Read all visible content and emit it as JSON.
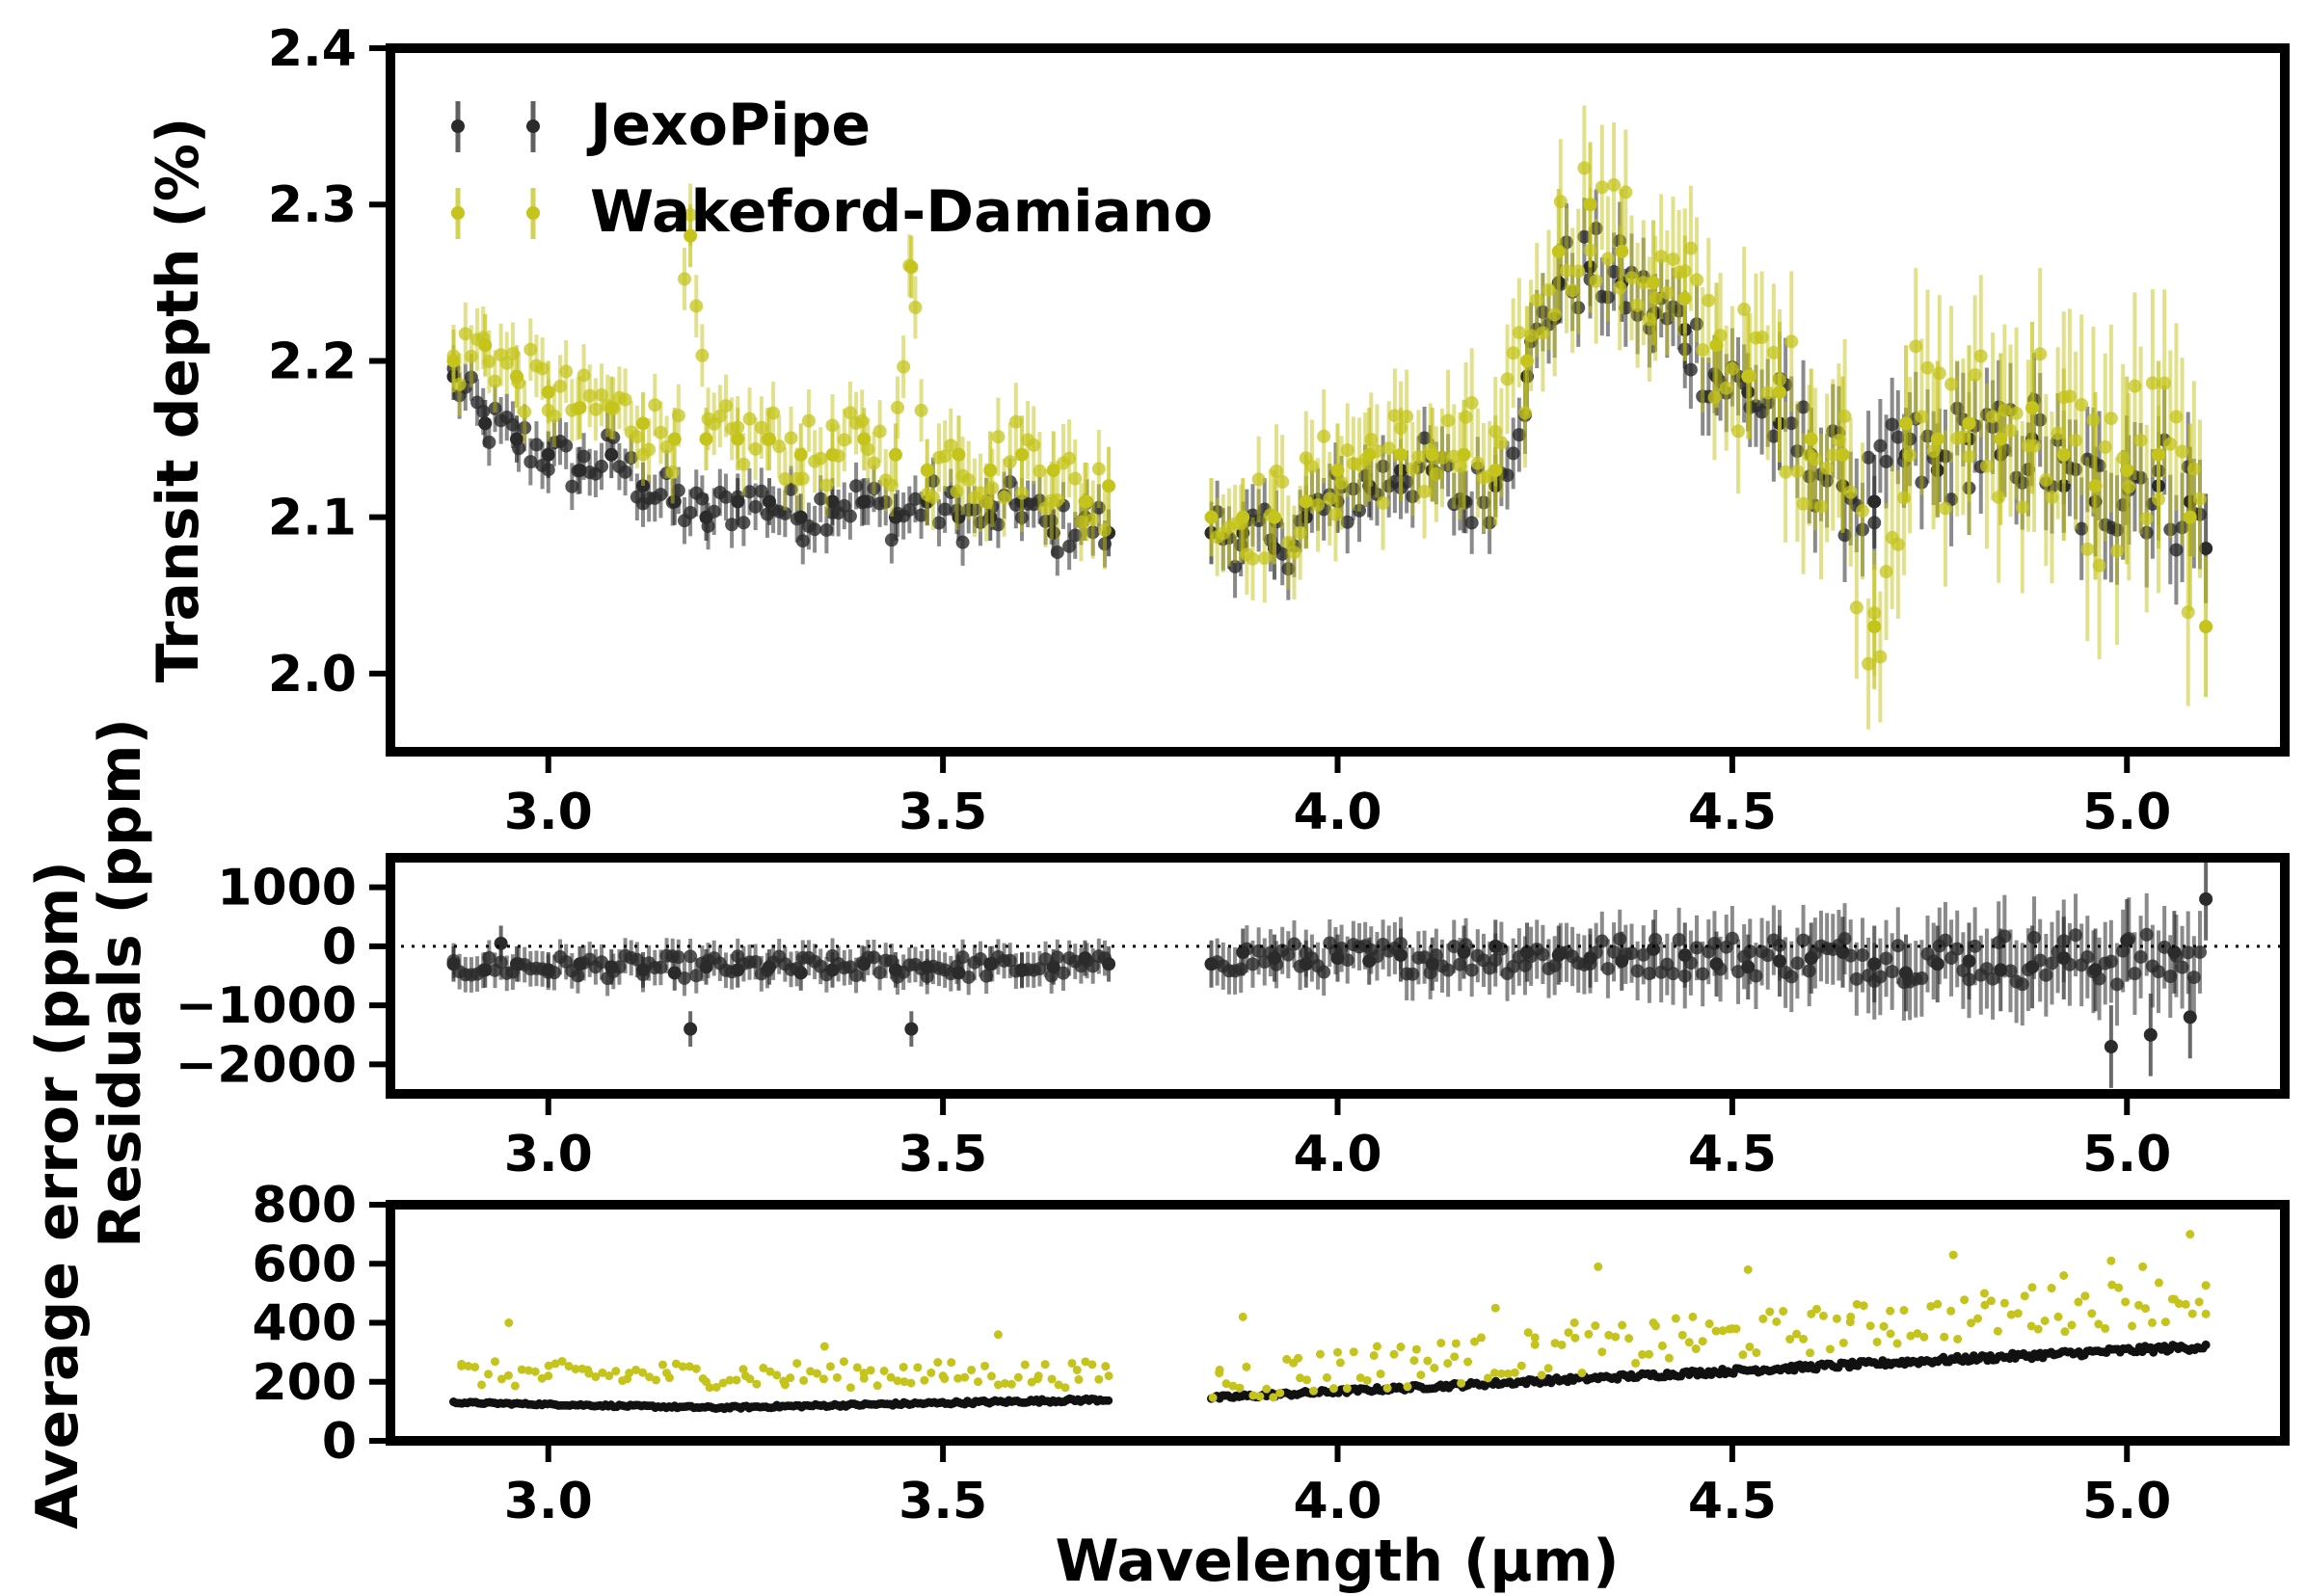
{
  "colors": {
    "jexopipe": "#2b2b2b",
    "wakeford": "#c4c41c",
    "axes": "#000000",
    "background": "#ffffff"
  },
  "xlabel": "Wavelength (µm)",
  "chart_data": [
    {
      "type": "scatter",
      "panel": "top",
      "title": "",
      "xlabel": "",
      "ylabel": "Transit depth (%)",
      "xlim": [
        2.8,
        5.2
      ],
      "ylim": [
        1.95,
        2.4
      ],
      "x_ticks": [
        "3.0",
        "3.5",
        "4.0",
        "4.5",
        "5.0"
      ],
      "y_ticks": [
        "2.0",
        "2.1",
        "2.2",
        "2.3",
        "2.4"
      ],
      "legend": {
        "placement": "top-left",
        "entries": [
          "JexoPipe",
          "Wakeford-Damiano"
        ]
      },
      "series": [
        {
          "name": "JexoPipe",
          "color": "#2b2b2b",
          "x": [
            2.88,
            2.92,
            2.96,
            3.0,
            3.04,
            3.08,
            3.12,
            3.16,
            3.2,
            3.24,
            3.28,
            3.32,
            3.36,
            3.4,
            3.44,
            3.48,
            3.52,
            3.56,
            3.6,
            3.64,
            3.68,
            3.71,
            3.84,
            3.88,
            3.92,
            3.96,
            4.0,
            4.04,
            4.08,
            4.12,
            4.16,
            4.2,
            4.24,
            4.28,
            4.32,
            4.36,
            4.4,
            4.44,
            4.48,
            4.52,
            4.56,
            4.6,
            4.64,
            4.68,
            4.72,
            4.76,
            4.8,
            4.84,
            4.88,
            4.92,
            4.96,
            5.0,
            5.04,
            5.08,
            5.1
          ],
          "y": [
            2.19,
            2.16,
            2.15,
            2.14,
            2.13,
            2.14,
            2.12,
            2.11,
            2.1,
            2.11,
            2.11,
            2.1,
            2.11,
            2.11,
            2.1,
            2.11,
            2.1,
            2.1,
            2.11,
            2.09,
            2.1,
            2.09,
            2.09,
            2.09,
            2.08,
            2.1,
            2.11,
            2.12,
            2.13,
            2.13,
            2.11,
            2.12,
            2.19,
            2.25,
            2.26,
            2.25,
            2.23,
            2.22,
            2.19,
            2.18,
            2.16,
            2.14,
            2.12,
            2.11,
            2.14,
            2.13,
            2.15,
            2.14,
            2.15,
            2.12,
            2.11,
            2.13,
            2.12,
            2.11,
            2.08
          ],
          "err": [
            0.015,
            0.015,
            0.015,
            0.015,
            0.015,
            0.015,
            0.015,
            0.015,
            0.015,
            0.015,
            0.015,
            0.015,
            0.015,
            0.015,
            0.015,
            0.015,
            0.015,
            0.015,
            0.015,
            0.015,
            0.015,
            0.015,
            0.02,
            0.02,
            0.02,
            0.02,
            0.02,
            0.02,
            0.02,
            0.02,
            0.02,
            0.02,
            0.025,
            0.025,
            0.025,
            0.025,
            0.025,
            0.025,
            0.025,
            0.025,
            0.03,
            0.03,
            0.03,
            0.03,
            0.03,
            0.03,
            0.03,
            0.03,
            0.03,
            0.03,
            0.035,
            0.035,
            0.035,
            0.035,
            0.035
          ]
        },
        {
          "name": "Wakeford-Damiano",
          "color": "#c4c41c",
          "x": [
            2.88,
            2.92,
            2.96,
            3.0,
            3.04,
            3.08,
            3.12,
            3.16,
            3.18,
            3.2,
            3.24,
            3.28,
            3.32,
            3.36,
            3.4,
            3.44,
            3.46,
            3.48,
            3.52,
            3.56,
            3.6,
            3.64,
            3.68,
            3.71,
            3.84,
            3.88,
            3.92,
            3.96,
            4.0,
            4.04,
            4.08,
            4.12,
            4.16,
            4.2,
            4.24,
            4.28,
            4.32,
            4.36,
            4.4,
            4.44,
            4.48,
            4.52,
            4.56,
            4.6,
            4.64,
            4.68,
            4.72,
            4.76,
            4.8,
            4.84,
            4.88,
            4.92,
            4.96,
            5.0,
            5.04,
            5.08,
            5.1
          ],
          "y": [
            2.2,
            2.21,
            2.19,
            2.18,
            2.17,
            2.17,
            2.16,
            2.15,
            2.28,
            2.15,
            2.15,
            2.15,
            2.14,
            2.14,
            2.15,
            2.14,
            2.26,
            2.13,
            2.14,
            2.13,
            2.14,
            2.13,
            2.11,
            2.12,
            2.1,
            2.1,
            2.1,
            2.11,
            2.13,
            2.14,
            2.14,
            2.14,
            2.14,
            2.13,
            2.2,
            2.27,
            2.3,
            2.27,
            2.25,
            2.24,
            2.21,
            2.19,
            2.18,
            2.15,
            2.14,
            2.03,
            2.16,
            2.15,
            2.16,
            2.15,
            2.17,
            2.14,
            2.12,
            2.13,
            2.14,
            2.1,
            2.03
          ],
          "err": [
            0.02,
            0.02,
            0.02,
            0.02,
            0.02,
            0.02,
            0.02,
            0.02,
            0.02,
            0.02,
            0.02,
            0.02,
            0.02,
            0.02,
            0.02,
            0.02,
            0.02,
            0.02,
            0.025,
            0.025,
            0.025,
            0.025,
            0.025,
            0.025,
            0.025,
            0.025,
            0.03,
            0.03,
            0.03,
            0.03,
            0.03,
            0.03,
            0.035,
            0.035,
            0.035,
            0.04,
            0.04,
            0.04,
            0.04,
            0.04,
            0.04,
            0.04,
            0.045,
            0.045,
            0.05,
            0.04,
            0.05,
            0.05,
            0.05,
            0.055,
            0.055,
            0.055,
            0.06,
            0.06,
            0.06,
            0.06,
            0.045
          ]
        }
      ]
    },
    {
      "type": "scatter",
      "panel": "middle",
      "title": "",
      "xlabel": "",
      "ylabel": "Residuals (ppm)",
      "xlim": [
        2.8,
        5.2
      ],
      "ylim": [
        -2500,
        1500
      ],
      "x_ticks": [
        "3.0",
        "3.5",
        "4.0",
        "4.5",
        "5.0"
      ],
      "y_ticks": [
        "1000",
        "0",
        "−1000",
        "−2000"
      ],
      "reference_line": {
        "y": 0,
        "style": "dotted"
      },
      "series": [
        {
          "name": "Residuals",
          "color": "#2b2b2b",
          "x": [
            2.88,
            2.92,
            2.94,
            2.96,
            3.0,
            3.04,
            3.08,
            3.12,
            3.16,
            3.18,
            3.2,
            3.24,
            3.28,
            3.32,
            3.36,
            3.4,
            3.44,
            3.46,
            3.48,
            3.52,
            3.56,
            3.6,
            3.64,
            3.68,
            3.71,
            3.84,
            3.88,
            3.92,
            3.96,
            4.0,
            4.04,
            4.08,
            4.12,
            4.16,
            4.2,
            4.24,
            4.28,
            4.32,
            4.36,
            4.4,
            4.44,
            4.48,
            4.52,
            4.56,
            4.6,
            4.64,
            4.68,
            4.72,
            4.76,
            4.8,
            4.84,
            4.88,
            4.92,
            4.96,
            4.98,
            5.0,
            5.03,
            5.06,
            5.08,
            5.1
          ],
          "y": [
            -300,
            -400,
            50,
            -300,
            -400,
            -300,
            -350,
            -400,
            -450,
            -1400,
            -350,
            -400,
            -350,
            -450,
            -400,
            -300,
            -400,
            -1400,
            -350,
            -450,
            -300,
            -400,
            -350,
            -200,
            -300,
            -300,
            -100,
            -200,
            -300,
            -200,
            -250,
            -150,
            -300,
            -100,
            0,
            -100,
            -150,
            -200,
            -250,
            -50,
            -150,
            -300,
            -350,
            -250,
            -200,
            -100,
            -300,
            -450,
            -300,
            -250,
            -400,
            -350,
            -200,
            -400,
            -1700,
            100,
            -1500,
            -100,
            -1200,
            800
          ],
          "err": [
            300,
            300,
            300,
            300,
            300,
            300,
            300,
            300,
            300,
            300,
            300,
            300,
            300,
            300,
            300,
            300,
            300,
            300,
            300,
            300,
            300,
            300,
            300,
            300,
            300,
            400,
            400,
            400,
            400,
            400,
            400,
            450,
            450,
            450,
            450,
            500,
            500,
            500,
            500,
            500,
            550,
            550,
            550,
            600,
            600,
            600,
            650,
            650,
            650,
            650,
            700,
            700,
            700,
            700,
            700,
            700,
            700,
            700,
            700,
            700
          ]
        }
      ]
    },
    {
      "type": "scatter",
      "panel": "bottom",
      "title": "",
      "xlabel": "Wavelength (µm)",
      "ylabel": "Average error (ppm)",
      "xlim": [
        2.8,
        5.2
      ],
      "ylim": [
        0,
        800
      ],
      "x_ticks": [
        "3.0",
        "3.5",
        "4.0",
        "4.5",
        "5.0"
      ],
      "y_ticks": [
        "800",
        "600",
        "400",
        "200",
        "0"
      ],
      "series": [
        {
          "name": "JexoPipe",
          "color": "#111111",
          "segments": [
            {
              "x_start": 2.88,
              "x_end": 3.71,
              "y_start": 130,
              "y_mid": 112,
              "y_end": 140
            },
            {
              "x_start": 3.84,
              "x_end": 5.1,
              "y_start": 145,
              "y_end": 320
            }
          ]
        },
        {
          "name": "Wakeford-Damiano",
          "color": "#c4c41c",
          "x": [
            2.89,
            2.95,
            3.0,
            3.05,
            3.1,
            3.15,
            3.2,
            3.25,
            3.3,
            3.35,
            3.4,
            3.45,
            3.5,
            3.57,
            3.62,
            3.67,
            3.71,
            3.85,
            3.88,
            3.95,
            4.0,
            4.05,
            4.1,
            4.15,
            4.2,
            4.25,
            4.3,
            4.33,
            4.4,
            4.45,
            4.5,
            4.52,
            4.6,
            4.65,
            4.7,
            4.78,
            4.82,
            4.88,
            4.92,
            4.98,
            5.02,
            5.06,
            5.08,
            5.1
          ],
          "y": [
            260,
            400,
            220,
            240,
            210,
            230,
            200,
            220,
            190,
            320,
            230,
            250,
            220,
            360,
            210,
            240,
            220,
            230,
            420,
            280,
            300,
            320,
            310,
            330,
            450,
            350,
            400,
            590,
            400,
            420,
            380,
            580,
            430,
            420,
            440,
            630,
            460,
            520,
            560,
            610,
            590,
            480,
            700,
            430
          ]
        }
      ]
    }
  ]
}
